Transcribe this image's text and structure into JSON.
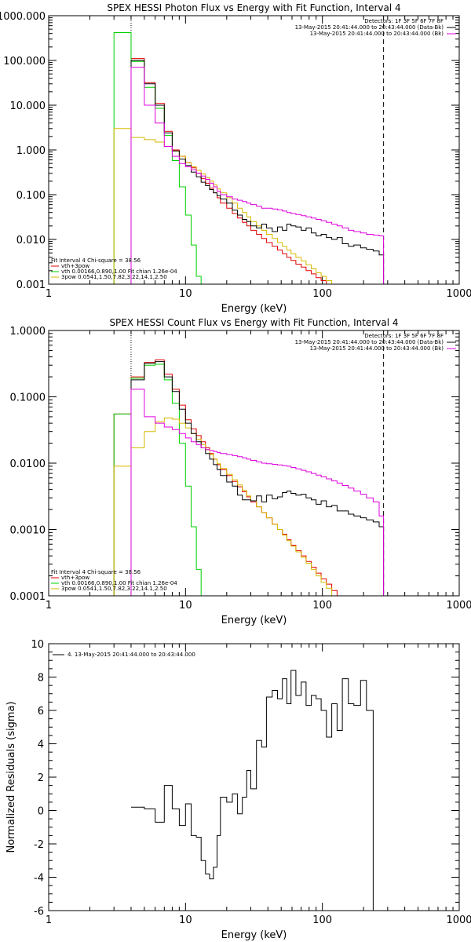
{
  "chart_data": [
    {
      "type": "line",
      "step": true,
      "title": "SPEX HESSI Photon Flux vs Energy with Fit Function, Interval 4",
      "xlabel": "Energy (keV)",
      "ylabel": "",
      "xscale": "log",
      "yscale": "log",
      "xlim": [
        1,
        1000
      ],
      "ylim": [
        0.001,
        1000
      ],
      "xticks": [
        "1",
        "10",
        "100",
        "1000"
      ],
      "yticks": [
        "0.001",
        "0.010",
        "0.100",
        "1.000",
        "10.000",
        "100.000",
        "1000.000"
      ],
      "legend_top_right": [
        {
          "text": "Detectors: 1F 3F 5F 6F 7F 8F",
          "color": "#000000"
        },
        {
          "text": "13-May-2015 20:41:44.000 to 20:43:44.000 (Data-Bk)",
          "color": "#000000"
        },
        {
          "text": "13-May-2015 20:41:44.000 to 20:43:44.000 (Bk)",
          "color": "#e000e0"
        }
      ],
      "legend_bottom_left": [
        {
          "text": "Fit Interval 4   Chi-square = 38.56",
          "color": "#000000"
        },
        {
          "text": "vth+3pow",
          "color": "#e00000"
        },
        {
          "text": "vth 0.00166,0.890,1.00  Fit chian 1.26e-04",
          "color": "#00d000"
        },
        {
          "text": "3pow 0.0541,1.50,7.82,3.22,14.1,2.50",
          "color": "#d8b800"
        }
      ],
      "vlines": [
        {
          "x": 4.0,
          "style": "dotted"
        },
        {
          "x": 280,
          "style": "dashed"
        }
      ],
      "edges": [
        3.0,
        4.0,
        5.0,
        6.0,
        7.0,
        8.0,
        9.0,
        10.0,
        11.0,
        12.0,
        13.0,
        14.0,
        15.0,
        16.0,
        17.0,
        18.0,
        20.0,
        22.0,
        24.0,
        26.0,
        28.0,
        30.0,
        33.0,
        36.0,
        39.0,
        43.0,
        47.0,
        51.0,
        55.0,
        59.0,
        64.0,
        70.0,
        76.0,
        83.0,
        90.0,
        98.0,
        107.0,
        117.0,
        128.0,
        140.0,
        155.0,
        170.0,
        190.0,
        210.0,
        235.0,
        260.0,
        280.0
      ],
      "series": [
        {
          "name": "vth+3pow",
          "color": "#e00000",
          "from": 1,
          "values": [
            110,
            32,
            11,
            2.6,
            1.0,
            0.72,
            0.52,
            0.4,
            0.3,
            0.23,
            0.18,
            0.14,
            0.11,
            0.085,
            0.065,
            0.05,
            0.038,
            0.03,
            0.024,
            0.02,
            0.016,
            0.013,
            0.0105,
            0.0085,
            0.007,
            0.0058,
            0.0048,
            0.004,
            0.0034,
            0.0028,
            0.0024,
            0.002,
            0.0017,
            0.0014,
            0.0012,
            0.001,
            0.00085
          ]
        },
        {
          "name": "vth",
          "color": "#00d000",
          "from": 0,
          "values": [
            420,
            95,
            25,
            8.5,
            2.1,
            0.58,
            0.15,
            0.035,
            0.0075,
            0.0015,
            0.0003
          ]
        },
        {
          "name": "3pow",
          "color": "#d8b800",
          "from": 0,
          "values": [
            3.0,
            1.9,
            1.7,
            1.5,
            1.2,
            0.95,
            0.72,
            0.52,
            0.42,
            0.35,
            0.29,
            0.24,
            0.2,
            0.165,
            0.135,
            0.11,
            0.085,
            0.065,
            0.05,
            0.04,
            0.032,
            0.025,
            0.02,
            0.016,
            0.013,
            0.0105,
            0.0085,
            0.007,
            0.0058,
            0.0048,
            0.004,
            0.0033,
            0.0027,
            0.0022,
            0.0018,
            0.0015,
            0.0012,
            0.001,
            0.0008
          ]
        },
        {
          "name": "Data-Bk",
          "color": "#000000",
          "from": 1,
          "values": [
            100,
            30,
            10,
            2.4,
            0.95,
            0.62,
            0.45,
            0.32,
            0.25,
            0.19,
            0.16,
            0.13,
            0.11,
            0.095,
            0.08,
            0.065,
            0.045,
            0.035,
            0.028,
            0.025,
            0.02,
            0.018,
            0.022,
            0.018,
            0.015,
            0.019,
            0.016,
            0.022,
            0.02,
            0.019,
            0.016,
            0.018,
            0.014,
            0.012,
            0.013,
            0.011,
            0.01,
            0.011,
            0.008,
            0.007,
            0.0075,
            0.0065,
            0.006,
            0.0055,
            0.0045
          ]
        },
        {
          "name": "Bk",
          "color": "#e000e0",
          "from": 1,
          "values": [
            70,
            10,
            4.0,
            1.2,
            0.72,
            0.5,
            0.42,
            0.36,
            0.3,
            0.26,
            0.22,
            0.18,
            0.15,
            0.12,
            0.1,
            0.09,
            0.08,
            0.075,
            0.07,
            0.065,
            0.06,
            0.055,
            0.05,
            0.05,
            0.048,
            0.046,
            0.043,
            0.04,
            0.038,
            0.036,
            0.034,
            0.032,
            0.03,
            0.028,
            0.026,
            0.024,
            0.022,
            0.02,
            0.018,
            0.016,
            0.015,
            0.014,
            0.013,
            0.0125,
            0.012
          ]
        }
      ]
    },
    {
      "type": "line",
      "step": true,
      "title": "SPEX HESSI Count Flux vs Energy with Fit Function, Interval 4",
      "xlabel": "Energy (keV)",
      "ylabel": "",
      "xscale": "log",
      "yscale": "log",
      "xlim": [
        1,
        1000
      ],
      "ylim": [
        0.0001,
        1
      ],
      "xticks": [
        "1",
        "10",
        "100",
        "1000"
      ],
      "yticks": [
        "0.0001",
        "0.0010",
        "0.0100",
        "0.1000",
        "1.0000"
      ],
      "legend_top_right": [
        {
          "text": "Detectors: 1F 3F 5F 6F 7F 8F",
          "color": "#000000"
        },
        {
          "text": "13-May-2015 20:41:44.000 to 20:43:44.000 (Data-Bk)",
          "color": "#000000"
        },
        {
          "text": "13-May-2015 20:41:44.000 to 20:43:44.000 (Bk)",
          "color": "#e000e0"
        }
      ],
      "legend_bottom_left": [
        {
          "text": "Fit Interval 4   Chi-square = 38.56",
          "color": "#000000"
        },
        {
          "text": "vth+3pow",
          "color": "#e00000"
        },
        {
          "text": "vth 0.00166,0.890,1.00  Fit chian 1.26e-04",
          "color": "#00d000"
        },
        {
          "text": "3pow 0.0541,1.50,7.82,3.22,14.1,2.50",
          "color": "#d8b800"
        }
      ],
      "vlines": [
        {
          "x": 4.0,
          "style": "dotted"
        },
        {
          "x": 280,
          "style": "dashed"
        }
      ],
      "edges": [
        3.0,
        4.0,
        5.0,
        6.0,
        7.0,
        8.0,
        9.0,
        10.0,
        11.0,
        12.0,
        13.0,
        14.0,
        15.0,
        16.0,
        17.0,
        18.0,
        20.0,
        22.0,
        24.0,
        26.0,
        28.0,
        30.0,
        33.0,
        36.0,
        39.0,
        43.0,
        47.0,
        51.0,
        55.0,
        59.0,
        64.0,
        70.0,
        76.0,
        83.0,
        90.0,
        98.0,
        107.0,
        117.0,
        128.0,
        140.0,
        155.0,
        170.0,
        190.0,
        210.0,
        235.0,
        260.0,
        280.0
      ],
      "series": [
        {
          "name": "vth+3pow",
          "color": "#e00000",
          "from": 0,
          "values": [
            0.055,
            0.2,
            0.33,
            0.36,
            0.22,
            0.13,
            0.075,
            0.045,
            0.033,
            0.026,
            0.021,
            0.017,
            0.014,
            0.0115,
            0.0095,
            0.008,
            0.0065,
            0.0053,
            0.0044,
            0.0037,
            0.0031,
            0.0026,
            0.0022,
            0.0018,
            0.0015,
            0.0012,
            0.001,
            0.00085,
            0.0007,
            0.00058,
            0.00048,
            0.0004,
            0.00033,
            0.00027,
            0.00022,
            0.00018,
            0.00015,
            0.00012,
            0.0001
          ]
        },
        {
          "name": "vth",
          "color": "#00d000",
          "from": 0,
          "values": [
            0.055,
            0.19,
            0.3,
            0.31,
            0.18,
            0.08,
            0.02,
            0.0045,
            0.0011,
            0.00025
          ]
        },
        {
          "name": "3pow",
          "color": "#d8b800",
          "from": 0,
          "values": [
            0.009,
            0.017,
            0.03,
            0.042,
            0.048,
            0.046,
            0.04,
            0.034,
            0.028,
            0.023,
            0.019,
            0.016,
            0.0135,
            0.0115,
            0.0098,
            0.0083,
            0.0068,
            0.0056,
            0.0047,
            0.0039,
            0.0032,
            0.0027,
            0.0022,
            0.0018,
            0.0015,
            0.0012,
            0.001,
            0.00082,
            0.00068,
            0.00056,
            0.00046,
            0.00038,
            0.00031,
            0.00025,
            0.0002,
            0.00016,
            0.00013,
            0.0001
          ]
        },
        {
          "name": "Data-Bk",
          "color": "#000000",
          "from": 1,
          "values": [
            0.18,
            0.32,
            0.34,
            0.2,
            0.12,
            0.065,
            0.04,
            0.028,
            0.021,
            0.017,
            0.014,
            0.0115,
            0.0095,
            0.008,
            0.0065,
            0.0052,
            0.0045,
            0.0033,
            0.0028,
            0.0028,
            0.0027,
            0.0032,
            0.0026,
            0.0033,
            0.0029,
            0.0031,
            0.0036,
            0.0038,
            0.0035,
            0.0033,
            0.0034,
            0.003,
            0.0028,
            0.0024,
            0.0027,
            0.0022,
            0.0023,
            0.0019,
            0.0019,
            0.0017,
            0.0016,
            0.0015,
            0.0014,
            0.0013,
            0.0011
          ]
        },
        {
          "name": "Bk",
          "color": "#e000e0",
          "from": 1,
          "values": [
            0.13,
            0.05,
            0.04,
            0.035,
            0.032,
            0.028,
            0.024,
            0.021,
            0.019,
            0.017,
            0.016,
            0.0155,
            0.015,
            0.0145,
            0.014,
            0.0135,
            0.013,
            0.0125,
            0.012,
            0.0115,
            0.011,
            0.0105,
            0.01,
            0.0098,
            0.0096,
            0.0094,
            0.0092,
            0.009,
            0.0086,
            0.0082,
            0.0078,
            0.0074,
            0.007,
            0.0066,
            0.0062,
            0.0058,
            0.0054,
            0.005,
            0.0046,
            0.0042,
            0.0038,
            0.0034,
            0.003,
            0.0026,
            0.0016
          ]
        }
      ]
    },
    {
      "type": "line",
      "step": true,
      "title": "",
      "xlabel": "Energy (keV)",
      "ylabel": "Normalized Residuals (sigma)",
      "xscale": "log",
      "yscale": "linear",
      "xlim": [
        1,
        1000
      ],
      "ylim": [
        -6,
        10
      ],
      "xticks": [
        "1",
        "10",
        "100",
        "1000"
      ],
      "yticks": [
        "-6",
        "-4",
        "-2",
        "0",
        "2",
        "4",
        "6",
        "8",
        "10"
      ],
      "legend_top_left": [
        {
          "text": "4. 13-May-2015 20:41:44.000 to 20:43:44.000",
          "color": "#000000"
        }
      ],
      "edges": [
        4.0,
        5.0,
        6.0,
        7.0,
        8.0,
        9.0,
        10.0,
        11.0,
        12.0,
        13.0,
        14.0,
        15.0,
        16.0,
        17.0,
        18.0,
        20.0,
        22.0,
        24.0,
        26.0,
        28.0,
        30.0,
        33.0,
        36.0,
        39.0,
        43.0,
        47.0,
        51.0,
        55.0,
        59.0,
        64.0,
        70.0,
        76.0,
        83.0,
        90.0,
        98.0,
        107.0,
        117.0,
        128.0,
        140.0,
        155.0,
        170.0,
        190.0,
        210.0,
        235.0,
        260.0,
        280.0
      ],
      "series": [
        {
          "name": "",
          "color": "#000000",
          "from": 0,
          "values": [
            0.2,
            0.1,
            -0.7,
            1.5,
            0.1,
            -0.9,
            0.4,
            -1.5,
            -1.6,
            -3.0,
            -3.8,
            -4.1,
            -3.4,
            -1.5,
            0.8,
            0.5,
            1.0,
            -0.2,
            0.8,
            2.4,
            1.3,
            4.2,
            3.8,
            6.8,
            7.2,
            6.7,
            7.9,
            6.4,
            8.4,
            6.9,
            7.7,
            6.3,
            6.9,
            6.7,
            6.0,
            4.4,
            6.4,
            4.8,
            7.9,
            6.4,
            6.3,
            7.8,
            6.0
          ]
        }
      ]
    }
  ]
}
